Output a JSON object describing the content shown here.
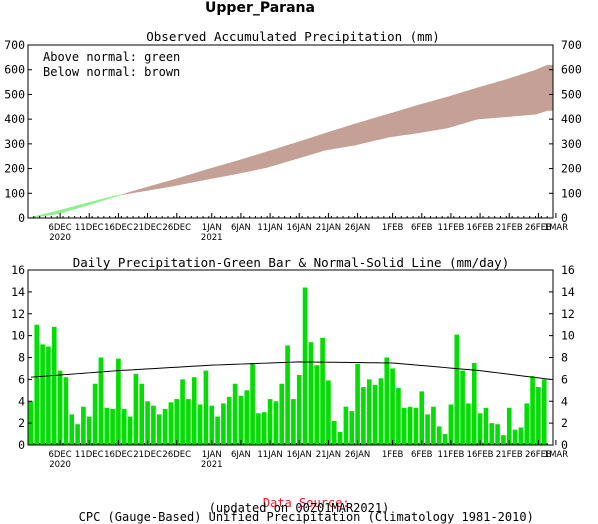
{
  "region_title": "Upper_Parana",
  "footer": {
    "source_label": "Data Source:",
    "source_text": "CPC (Gauge-Based) Unified Precipitation (Climatology 1981-2010)",
    "updated": "(updated on 00Z01MAR2021)"
  },
  "colors": {
    "above_normal": "#90ee90",
    "below_normal": "#c4a096",
    "daily_bar": "#00dd00",
    "normal_line": "#000000",
    "source_label": "#e02020"
  },
  "chart_data": [
    {
      "type": "area",
      "title": "Observed Accumulated Precipitation (mm)",
      "annotations": [
        "Above normal: green",
        "Below normal: brown"
      ],
      "x_tick_labels": [
        "6DEC",
        "11DEC",
        "16DEC",
        "21DEC",
        "26DEC",
        "1JAN",
        "6JAN",
        "11JAN",
        "16JAN",
        "21JAN",
        "26JAN",
        "1FEB",
        "6FEB",
        "11FEB",
        "16FEB",
        "21FEB",
        "26FEB",
        "1MAR"
      ],
      "x_tick_sublabels": {
        "6DEC": "2020",
        "1JAN": "2021"
      },
      "x_range": [
        "1DEC2020",
        "28FEB2021"
      ],
      "ylim": [
        0,
        700
      ],
      "y_ticks": [
        0,
        100,
        200,
        300,
        400,
        500,
        600,
        700
      ],
      "grid": false,
      "series": [
        {
          "name": "Observed",
          "x": [
            "1DEC",
            "6DEC",
            "11DEC",
            "16DEC",
            "21DEC",
            "26DEC",
            "1JAN",
            "6JAN",
            "11JAN",
            "16JAN",
            "21JAN",
            "26JAN",
            "1FEB",
            "6FEB",
            "11FEB",
            "16FEB",
            "21FEB",
            "26FEB",
            "28FEB"
          ],
          "values": [
            0,
            28,
            60,
            90,
            110,
            130,
            158,
            180,
            205,
            240,
            275,
            295,
            328,
            345,
            365,
            400,
            410,
            420,
            435
          ]
        },
        {
          "name": "Normal",
          "x": [
            "1DEC",
            "6DEC",
            "11DEC",
            "16DEC",
            "21DEC",
            "26DEC",
            "1JAN",
            "6JAN",
            "11JAN",
            "16JAN",
            "21JAN",
            "26JAN",
            "1FEB",
            "6FEB",
            "11FEB",
            "16FEB",
            "21FEB",
            "26FEB",
            "28FEB"
          ],
          "values": [
            0,
            16,
            50,
            87,
            122,
            155,
            198,
            232,
            268,
            305,
            343,
            380,
            422,
            457,
            490,
            526,
            560,
            598,
            618
          ]
        }
      ]
    },
    {
      "type": "bar",
      "title": "Daily Precipitation-Green Bar & Normal-Solid Line (mm/day)",
      "x_tick_labels": [
        "6DEC",
        "11DEC",
        "16DEC",
        "21DEC",
        "26DEC",
        "1JAN",
        "6JAN",
        "11JAN",
        "16JAN",
        "21JAN",
        "26JAN",
        "1FEB",
        "6FEB",
        "11FEB",
        "16FEB",
        "21FEB",
        "26FEB",
        "1MAR"
      ],
      "x_tick_sublabels": {
        "6DEC": "2020",
        "1JAN": "2021"
      },
      "ylim": [
        0,
        16
      ],
      "y_ticks": [
        0,
        2,
        4,
        6,
        8,
        10,
        12,
        14,
        16
      ],
      "grid": false,
      "daily_start": "1DEC2020",
      "daily_values": [
        4.0,
        11.0,
        9.2,
        9.0,
        10.8,
        6.8,
        6.2,
        2.8,
        1.9,
        3.5,
        2.6,
        5.6,
        8.0,
        3.4,
        3.3,
        7.9,
        3.3,
        2.6,
        6.5,
        5.6,
        4.0,
        3.6,
        2.8,
        3.3,
        3.9,
        4.2,
        6.0,
        4.2,
        6.2,
        3.7,
        6.8,
        3.6,
        2.6,
        3.8,
        4.4,
        5.6,
        4.5,
        5.0,
        7.5,
        2.9,
        3.0,
        4.2,
        4.0,
        5.6,
        9.1,
        4.2,
        6.4,
        14.4,
        9.4,
        7.3,
        9.8,
        5.9,
        2.2,
        1.2,
        3.5,
        3.1,
        7.4,
        5.3,
        6.0,
        5.5,
        6.1,
        8.0,
        7.0,
        5.2,
        3.4,
        3.5,
        3.4,
        4.9,
        2.8,
        3.5,
        1.7,
        1.0,
        3.7,
        10.1,
        6.8,
        3.8,
        7.5,
        2.9,
        3.4,
        2.0,
        1.9,
        0.9,
        3.4,
        1.4,
        1.6,
        3.8,
        6.3,
        5.3,
        6.0
      ],
      "normal_line": {
        "x": [
          "1DEC",
          "16DEC",
          "1JAN",
          "16JAN",
          "1FEB",
          "16FEB",
          "28FEB"
        ],
        "values": [
          6.2,
          6.8,
          7.3,
          7.6,
          7.5,
          6.8,
          6.0
        ]
      }
    }
  ]
}
